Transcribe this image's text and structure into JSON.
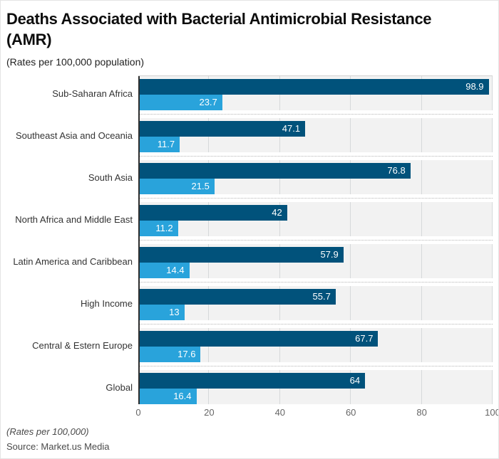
{
  "header": {
    "title_line1": "Deaths Associated with Bacterial Antimicrobial Resistance",
    "title_line2": "(AMR)",
    "subtitle": "(Rates per 100,000 population)"
  },
  "footer": {
    "footnote": "(Rates per 100,000)",
    "source": "Source: Market.us Media"
  },
  "colors": {
    "series1": "#01527b",
    "series2": "#29a3db",
    "plot_background": "#f2f2f2",
    "gridline": "#d6d9da",
    "axis_line": "#2e2e2e"
  },
  "chart_data": {
    "type": "bar",
    "orientation": "horizontal",
    "title": "Deaths Associated with Bacterial Antimicrobial Resistance (AMR)",
    "subtitle": "(Rates per 100,000 population)",
    "xlabel": "",
    "ylabel": "",
    "xlim": [
      0,
      100
    ],
    "xticks": [
      0,
      20,
      40,
      60,
      80,
      100
    ],
    "grid": true,
    "legend": "none",
    "categories": [
      "Sub-Saharan Africa",
      "Southeast Asia and Oceania",
      "South Asia",
      "North Africa and Middle East",
      "Latin America and Caribbean",
      "High Income",
      "Central & Estern Europe",
      "Global"
    ],
    "series": [
      {
        "name": "series-1-dark-blue",
        "color": "#01527b",
        "values": [
          98.9,
          47.1,
          76.8,
          42,
          57.9,
          55.7,
          67.7,
          64
        ]
      },
      {
        "name": "series-2-light-blue",
        "color": "#29a3db",
        "values": [
          23.7,
          11.7,
          21.5,
          11.2,
          14.4,
          13,
          17.6,
          16.4
        ]
      }
    ]
  }
}
